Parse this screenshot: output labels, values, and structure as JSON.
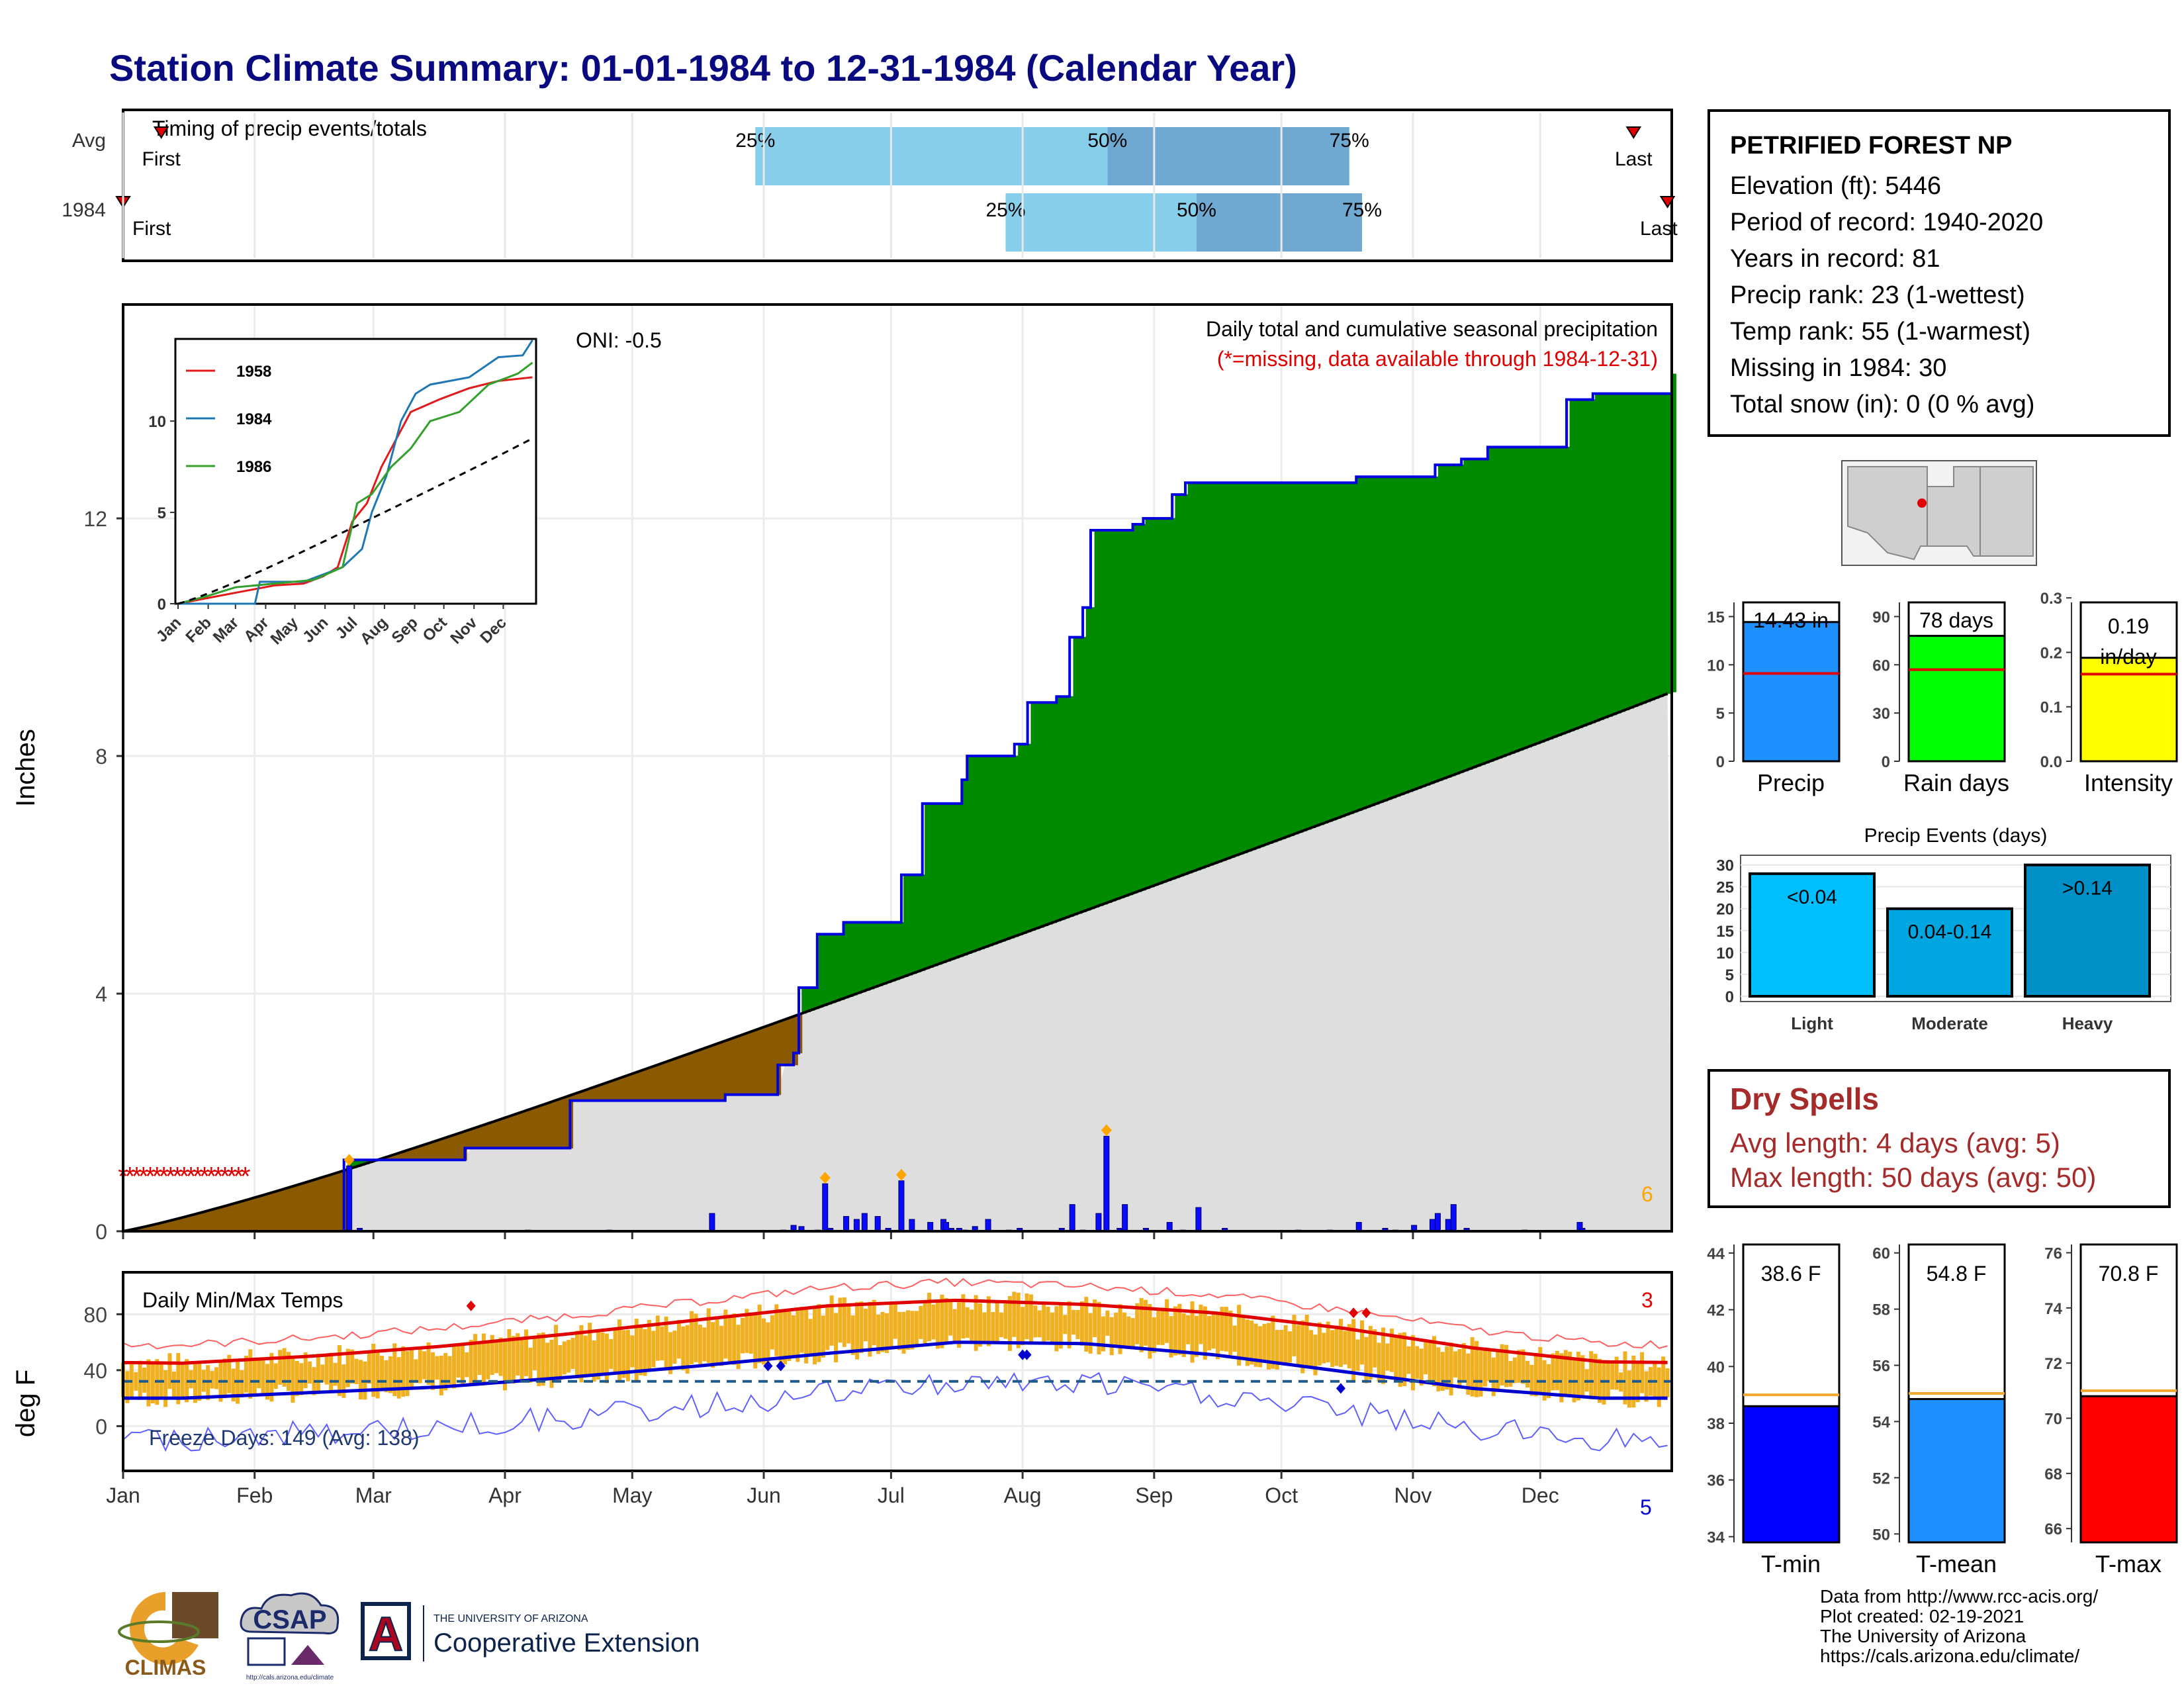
{
  "title": "Station Climate Summary: 01-01-1984 to 12-31-1984 (Calendar Year)",
  "station": {
    "name": "PETRIFIED FOREST NP",
    "lines": [
      "Elevation (ft): 5446",
      "Period of record: 1940-2020",
      "Years in record: 81",
      "Precip rank: 23 (1-wettest)",
      "Temp rank: 55 (1-warmest)",
      "Missing in 1984: 30",
      "Total snow (in): 0 (0 % avg)"
    ]
  },
  "timing": {
    "label": "Timing of precip events/totals",
    "rows": [
      {
        "row_label": "Avg",
        "first": "First",
        "last": "Last",
        "q25": "25%",
        "q50": "50%",
        "q75": "75%",
        "first_doy": 10,
        "q25_doy": 150,
        "q50_doy": 233,
        "q75_doy": 290,
        "last_doy": 357
      },
      {
        "row_label": "1984",
        "first": "First",
        "last": "Last",
        "q25": "25%",
        "q50": "50%",
        "q75": "75%",
        "first_doy": 1,
        "q25_doy": 209,
        "q50_doy": 254,
        "q75_doy": 293,
        "last_doy": 365
      }
    ]
  },
  "months": [
    "Jan",
    "Feb",
    "Mar",
    "Apr",
    "May",
    "Jun",
    "Jul",
    "Aug",
    "Sep",
    "Oct",
    "Nov",
    "Dec"
  ],
  "precip_panel": {
    "ylabel": "Inches",
    "title": "Daily total and cumulative seasonal precipitation",
    "subtitle": "(*=missing, data available through 1984-12-31)",
    "oni": "ONI: -0.5",
    "extreme_count": "6",
    "yticks": [
      "0",
      "4",
      "8",
      "12"
    ]
  },
  "inset": {
    "legend": [
      "1958",
      "1984",
      "1986"
    ],
    "yticks": [
      "0",
      "5",
      "10"
    ],
    "colors": [
      "#e31a1c",
      "#1f78b4",
      "#33a02c"
    ]
  },
  "temp_panel": {
    "ylabel": "deg F",
    "title": "Daily Min/Max Temps",
    "freeze": "Freeze Days: 149 (Avg: 138)",
    "hot_count": "3",
    "cold_count": "5",
    "yticks": [
      "0",
      "40",
      "80"
    ]
  },
  "summary_bars": [
    {
      "label": "Precip",
      "value": 14.43,
      "value_text": "14.43 in",
      "avg": 9.1,
      "ymax": 17.5,
      "ticks": [
        "0",
        "5",
        "10",
        "15"
      ],
      "tickvals": [
        0,
        5,
        10,
        15
      ],
      "color": "#1e90ff"
    },
    {
      "label": "Rain days",
      "value": 78,
      "value_text": "78 days",
      "avg": 57,
      "ymax": 105,
      "ticks": [
        "0",
        "30",
        "60",
        "90"
      ],
      "tickvals": [
        0,
        30,
        60,
        90
      ],
      "color": "#00ff00"
    },
    {
      "label": "Intensity",
      "value": 0.19,
      "value_text": "0.19 in/day",
      "avg": 0.16,
      "ymax": 0.31,
      "ticks": [
        "0.0",
        "0.1",
        "0.2",
        "0.3"
      ],
      "tickvals": [
        0,
        0.1,
        0.2,
        0.3
      ],
      "color": "#ffff00"
    }
  ],
  "events": {
    "title": "Precip Events (days)",
    "categories": [
      "Light",
      "Moderate",
      "Heavy"
    ],
    "labels": [
      "<0.04",
      "0.04-0.14",
      ">0.14"
    ],
    "values": [
      28,
      20,
      30
    ],
    "yticks": [
      "0",
      "5",
      "10",
      "15",
      "20",
      "25",
      "30"
    ],
    "colors": [
      "#00bfff",
      "#00a6e0",
      "#0090c8"
    ]
  },
  "dry_spells": {
    "title": "Dry Spells",
    "avg_line": "Avg length: 4 days (avg: 5)",
    "max_line": "Max length: 50 days (avg: 50)"
  },
  "temp_bars": [
    {
      "label": "T-min",
      "value": 38.6,
      "value_text": "38.6 F",
      "avg": 39.0,
      "ymin": 33.8,
      "ymax": 44.3,
      "ticks": [
        "34",
        "36",
        "38",
        "40",
        "42",
        "44"
      ],
      "tickvals": [
        34,
        36,
        38,
        40,
        42,
        44
      ],
      "color": "#0000ff"
    },
    {
      "label": "T-mean",
      "value": 54.8,
      "value_text": "54.8 F",
      "avg": 55.0,
      "ymin": 49.7,
      "ymax": 60.3,
      "ticks": [
        "50",
        "52",
        "54",
        "56",
        "58",
        "60"
      ],
      "tickvals": [
        50,
        52,
        54,
        56,
        58,
        60
      ],
      "color": "#1e90ff"
    },
    {
      "label": "T-max",
      "value": 70.8,
      "value_text": "70.8 F",
      "avg": 71.0,
      "ymin": 65.5,
      "ymax": 76.3,
      "ticks": [
        "66",
        "68",
        "70",
        "72",
        "74",
        "76"
      ],
      "tickvals": [
        66,
        68,
        70,
        72,
        74,
        76
      ],
      "color": "#ff0000"
    }
  ],
  "credits": [
    "Data from http://www.rcc-acis.org/",
    "Plot created: 02-19-2021",
    "The University of Arizona",
    "https://cals.arizona.edu/climate/"
  ],
  "logos": {
    "climas": "CLIMAS",
    "csap": "CSAP",
    "csap_url": "http://cals.arizona.edu/climate",
    "ua_top": "THE UNIVERSITY OF ARIZONA",
    "ua_main": "Cooperative Extension",
    "ua_letter": "A"
  },
  "chart_data": [
    {
      "type": "area",
      "title": "Daily total and cumulative seasonal precipitation",
      "ylabel": "Inches",
      "ylim": [
        0,
        15.6
      ],
      "x": "day of year 1984",
      "cumulative_1984": [
        [
          1,
          0
        ],
        [
          80,
          0
        ],
        [
          85,
          1.2
        ],
        [
          130,
          1.2
        ],
        [
          131,
          1.4
        ],
        [
          170,
          1.4
        ],
        [
          171,
          2.2
        ],
        [
          230,
          2.3
        ],
        [
          250,
          2.8
        ],
        [
          256,
          3.0
        ],
        [
          258,
          4.1
        ],
        [
          265,
          5.0
        ],
        [
          275,
          5.2
        ],
        [
          296,
          5.2
        ],
        [
          297,
          6.0
        ],
        [
          305,
          7.2
        ],
        [
          320,
          7.6
        ],
        [
          322,
          8.0
        ],
        [
          340,
          8.2
        ],
        [
          345,
          8.9
        ],
        [
          356,
          9.0
        ],
        [
          361,
          10.0
        ],
        [
          366,
          10.5
        ],
        [
          369,
          11.8
        ],
        [
          385,
          11.9
        ],
        [
          389,
          12.0
        ],
        [
          400,
          12.4
        ],
        [
          405,
          12.6
        ],
        [
          420,
          12.6
        ],
        [
          470,
          12.7
        ],
        [
          500,
          12.9
        ],
        [
          510,
          13.0
        ],
        [
          520,
          13.2
        ],
        [
          550,
          14.0
        ],
        [
          560,
          14.1
        ],
        [
          580,
          14.1
        ],
        [
          590,
          14.43
        ]
      ],
      "average_cumulative_end": 9.1,
      "daily_precip_1984": [
        [
          87,
          1.1
        ],
        [
          91,
          0.05
        ],
        [
          155,
          0.02
        ],
        [
          186,
          0.02
        ],
        [
          225,
          0.3
        ],
        [
          252,
          0.02
        ],
        [
          256,
          0.1
        ],
        [
          259,
          0.08
        ],
        [
          265,
          0.02
        ],
        [
          268,
          0.8
        ],
        [
          270,
          0.05
        ],
        [
          276,
          0.25
        ],
        [
          280,
          0.2
        ],
        [
          283,
          0.3
        ],
        [
          288,
          0.25
        ],
        [
          292,
          0.05
        ],
        [
          297,
          0.85
        ],
        [
          301,
          0.2
        ],
        [
          308,
          0.15
        ],
        [
          313,
          0.2
        ],
        [
          314,
          0.15
        ],
        [
          316,
          0.05
        ],
        [
          319,
          0.05
        ],
        [
          321,
          0.02
        ],
        [
          325,
          0.08
        ],
        [
          330,
          0.2
        ],
        [
          338,
          0.02
        ],
        [
          342,
          0.05
        ],
        [
          358,
          0.05
        ],
        [
          362,
          0.45
        ],
        [
          366,
          0.02
        ],
        [
          372,
          0.3
        ],
        [
          375,
          1.6
        ],
        [
          380,
          0.05
        ],
        [
          382,
          0.45
        ],
        [
          390,
          0.05
        ],
        [
          399,
          0.15
        ],
        [
          404,
          0.02
        ],
        [
          410,
          0.4
        ],
        [
          420,
          0.05
        ],
        [
          448,
          0.02
        ],
        [
          460,
          0.02
        ],
        [
          471,
          0.15
        ],
        [
          481,
          0.05
        ],
        [
          485,
          0.02
        ],
        [
          492,
          0.1
        ],
        [
          499,
          0.2
        ],
        [
          501,
          0.3
        ],
        [
          505,
          0.2
        ],
        [
          507,
          0.45
        ],
        [
          512,
          0.05
        ],
        [
          534,
          0.02
        ],
        [
          555,
          0.15
        ],
        [
          556,
          0.05
        ]
      ]
    },
    {
      "type": "line",
      "title": "Daily Min/Max Temps",
      "ylabel": "deg F",
      "ylim": [
        -30,
        110
      ],
      "avg_max_by_month": [
        45,
        50,
        57,
        66,
        76,
        86,
        90,
        87,
        81,
        70,
        56,
        46
      ],
      "avg_min_by_month": [
        20,
        24,
        28,
        35,
        43,
        52,
        60,
        59,
        51,
        39,
        27,
        20
      ],
      "freeze_line": 32
    }
  ]
}
